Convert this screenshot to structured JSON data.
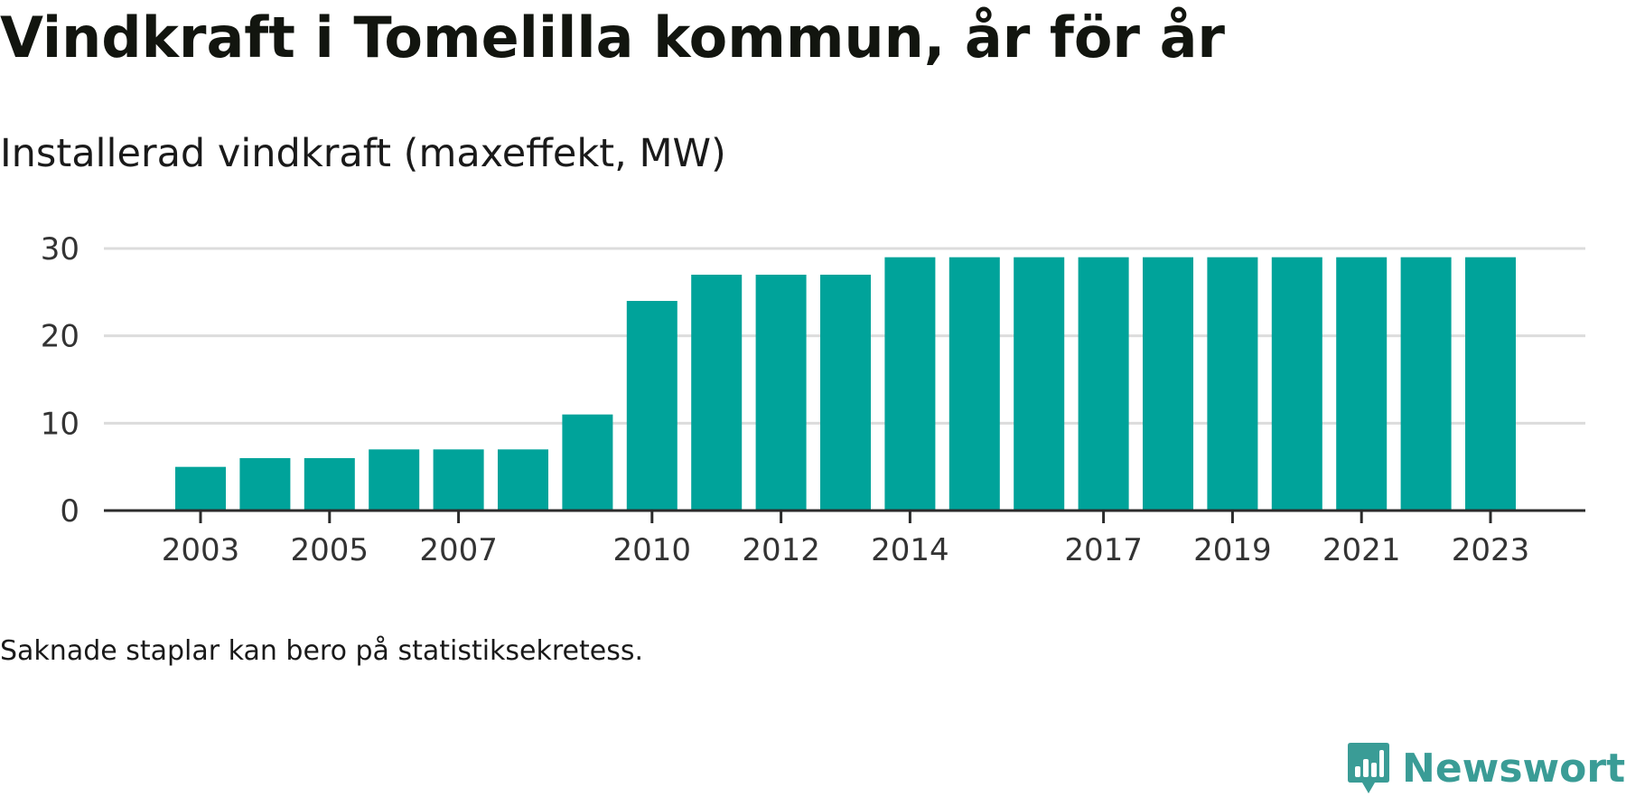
{
  "header": {
    "title": "Vindkraft i Tomelilla kommun, år för år",
    "subtitle": "Installerad vindkraft (maxeffekt, MW)"
  },
  "footnote": "Saknade staplar kan bero på statistiksekretess.",
  "brand": {
    "name": "Newsworthy",
    "icon": "newsworthy-logo-icon",
    "color": "#3a9c96"
  },
  "chart_data": {
    "type": "bar",
    "title": "",
    "xlabel": "",
    "ylabel": "",
    "color": "#00a39a",
    "categories": [
      "2003",
      "2004",
      "2005",
      "2006",
      "2007",
      "2008",
      "2009",
      "2010",
      "2011",
      "2012",
      "2013",
      "2014",
      "2015",
      "2016",
      "2017",
      "2018",
      "2019",
      "2020",
      "2021",
      "2022",
      "2023"
    ],
    "values": [
      5,
      6,
      6,
      7,
      7,
      7,
      11,
      24,
      27,
      27,
      27,
      29,
      29,
      29,
      29,
      29,
      29,
      29,
      29,
      29,
      29
    ],
    "x_tick_labels": [
      "2003",
      "2005",
      "2007",
      "2010",
      "2012",
      "2014",
      "2017",
      "2019",
      "2021",
      "2023"
    ],
    "ylim": [
      0,
      30
    ],
    "y_ticks": [
      0,
      10,
      20,
      30
    ],
    "grid": true,
    "legend": "none"
  }
}
